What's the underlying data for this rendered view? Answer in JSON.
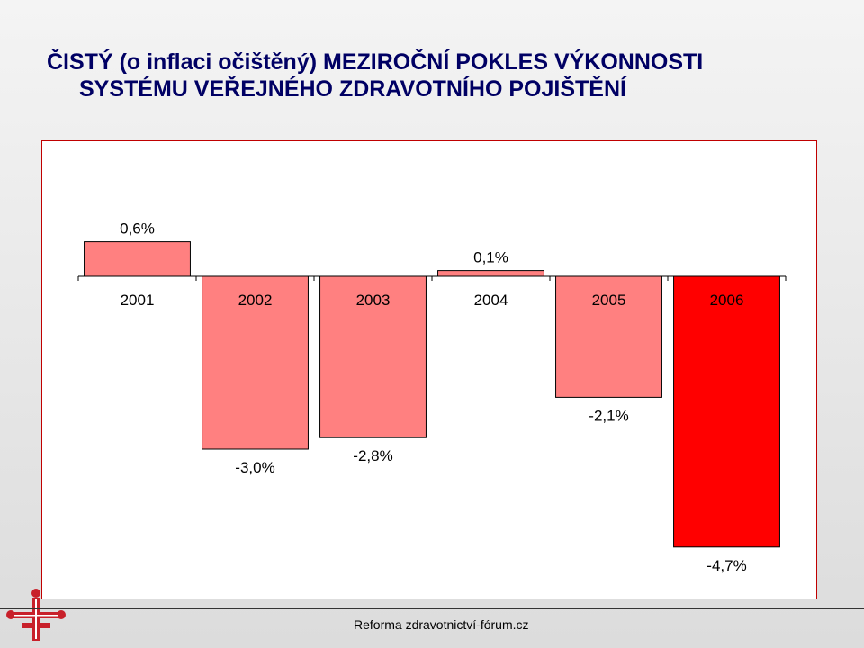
{
  "slide": {
    "title_line1": "ČISTÝ (o inflaci očištěný) MEZIROČNÍ POKLES VÝKONNOSTI",
    "title_line2": "SYSTÉMU VEŘEJNÉHO ZDRAVOTNÍHO POJIŠTĚNÍ",
    "footer": "Reforma zdravotnictví-fórum.cz"
  },
  "chart_data": {
    "type": "bar",
    "categories": [
      "2001",
      "2002",
      "2003",
      "2004",
      "2005",
      "2006"
    ],
    "values": [
      0.6,
      -3.0,
      -2.8,
      0.1,
      -2.1,
      -4.7
    ],
    "data_labels": [
      "0,6%",
      "-3,0%",
      "-2,8%",
      "0,1%",
      "-2,1%",
      "-4,7%"
    ],
    "colors": [
      "#ff8080",
      "#ff8080",
      "#ff8080",
      "#ff8080",
      "#ff8080",
      "#ff0000"
    ],
    "title": "",
    "xlabel": "",
    "ylabel": "",
    "ylim": [
      -5.0,
      1.0
    ],
    "grid": false,
    "legend": "none"
  }
}
